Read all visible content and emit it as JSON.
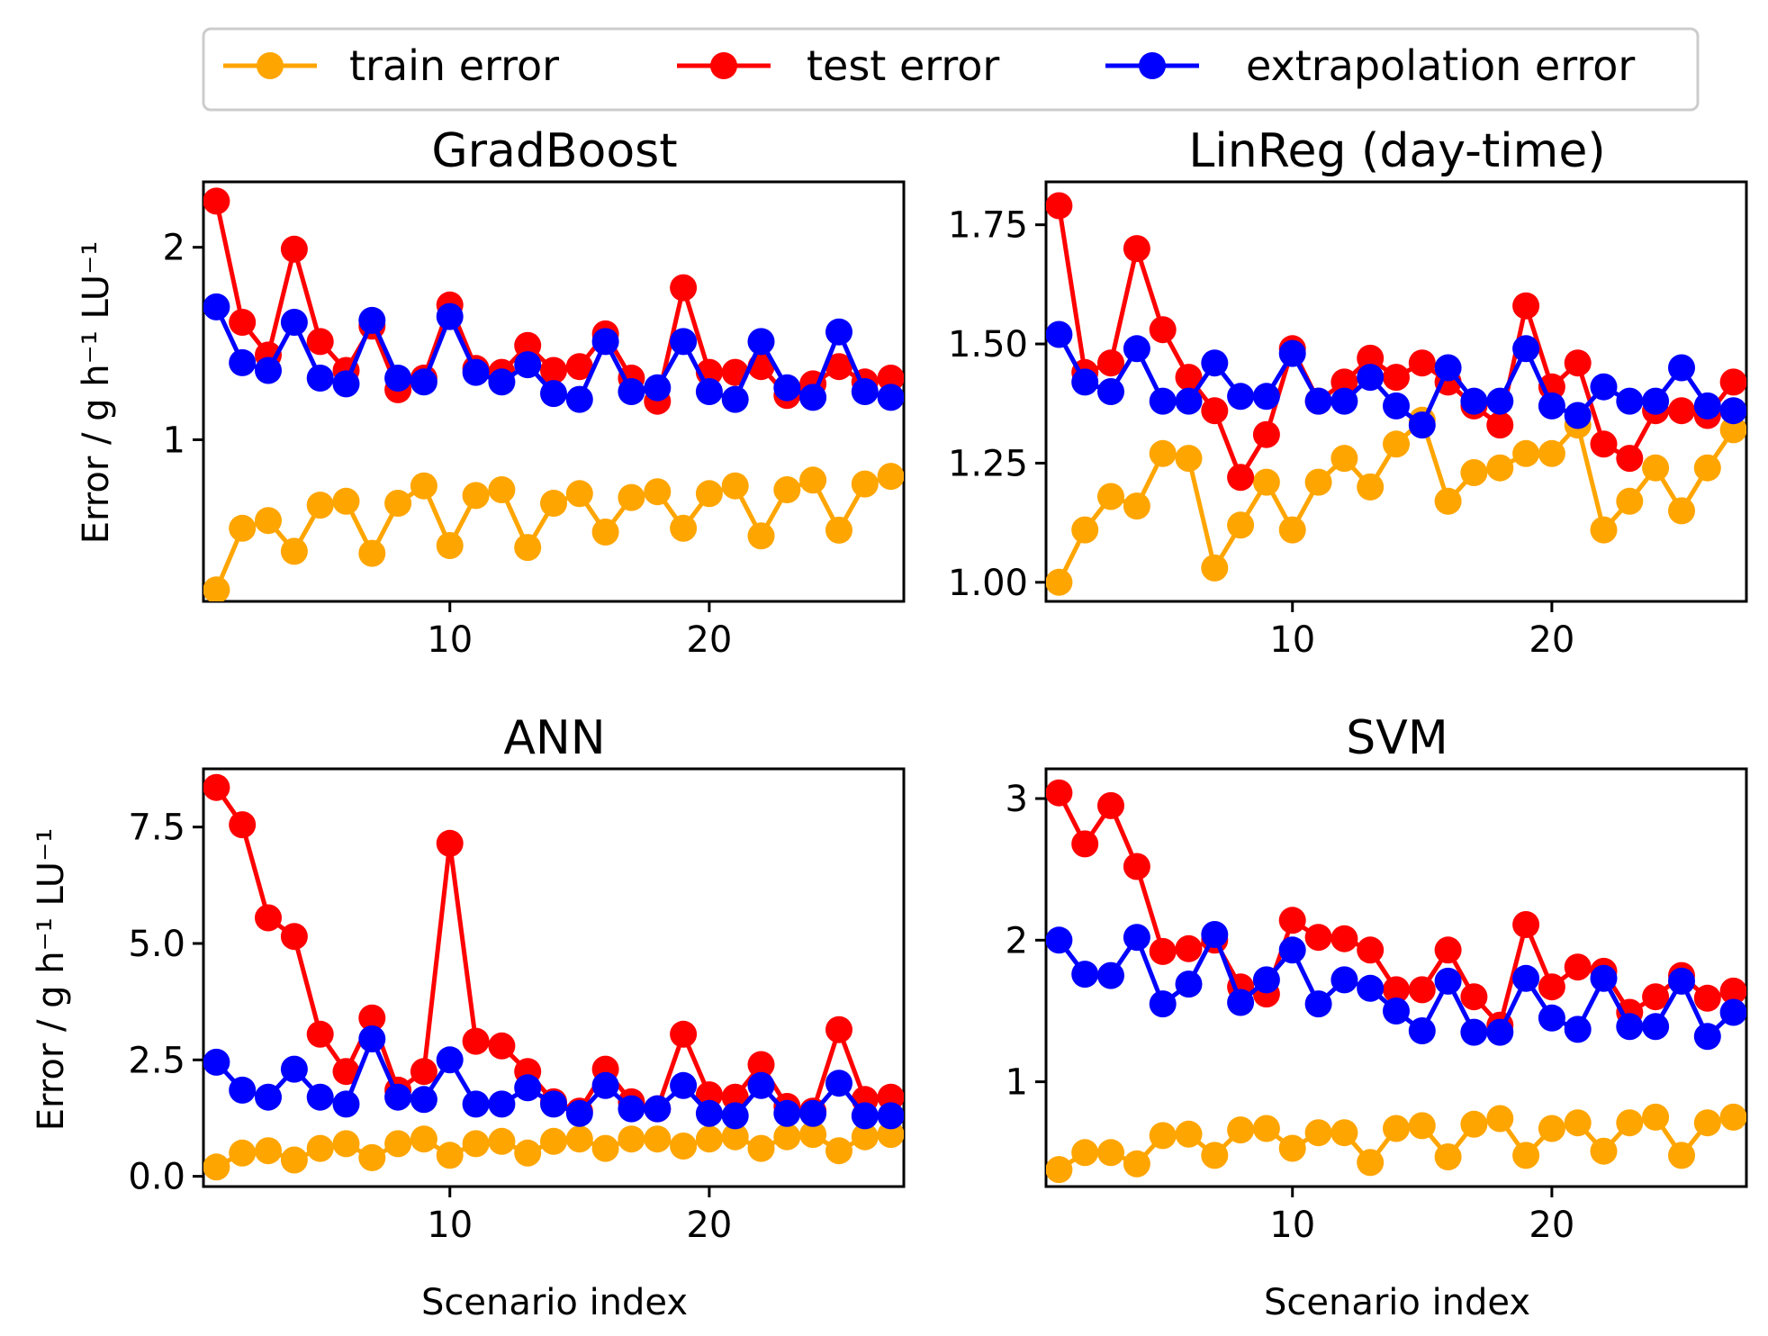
{
  "legend": {
    "items": [
      {
        "label": "train error",
        "color": "#FFA500"
      },
      {
        "label": "test error",
        "color": "#FF0000"
      },
      {
        "label": "extrapolation error",
        "color": "#0000FF"
      }
    ]
  },
  "chart_data": [
    {
      "type": "line",
      "title": "GradBoost",
      "xlabel": "",
      "ylabel": "Error  /  g h⁻¹ LU⁻¹",
      "xlim": [
        0.5,
        27.5
      ],
      "ylim": [
        0.16,
        2.34
      ],
      "xticks": [
        10,
        20
      ],
      "xtick_labels": [
        "10",
        "20"
      ],
      "yticks": [
        1,
        2
      ],
      "ytick_labels": [
        "1",
        "2"
      ],
      "x": [
        1,
        2,
        3,
        4,
        5,
        6,
        7,
        8,
        9,
        10,
        11,
        12,
        13,
        14,
        15,
        16,
        17,
        18,
        19,
        20,
        21,
        22,
        23,
        24,
        25,
        26,
        27
      ],
      "series": [
        {
          "name": "train error",
          "color": "#FFA500",
          "values": [
            0.22,
            0.54,
            0.58,
            0.42,
            0.66,
            0.68,
            0.41,
            0.67,
            0.76,
            0.45,
            0.71,
            0.74,
            0.44,
            0.67,
            0.72,
            0.52,
            0.7,
            0.73,
            0.54,
            0.72,
            0.76,
            0.5,
            0.74,
            0.79,
            0.53,
            0.77,
            0.81
          ]
        },
        {
          "name": "test error",
          "color": "#FF0000",
          "values": [
            2.24,
            1.61,
            1.44,
            1.99,
            1.51,
            1.36,
            1.59,
            1.26,
            1.32,
            1.7,
            1.37,
            1.35,
            1.49,
            1.36,
            1.38,
            1.55,
            1.32,
            1.2,
            1.79,
            1.35,
            1.35,
            1.38,
            1.23,
            1.29,
            1.38,
            1.3,
            1.32
          ]
        },
        {
          "name": "extrapolation error",
          "color": "#0000FF",
          "values": [
            1.69,
            1.4,
            1.36,
            1.61,
            1.32,
            1.29,
            1.62,
            1.32,
            1.3,
            1.64,
            1.35,
            1.3,
            1.39,
            1.24,
            1.21,
            1.51,
            1.25,
            1.27,
            1.51,
            1.25,
            1.21,
            1.51,
            1.27,
            1.22,
            1.56,
            1.25,
            1.22
          ]
        }
      ]
    },
    {
      "type": "line",
      "title": "LinReg (day-time)",
      "xlabel": "",
      "ylabel": "",
      "xlim": [
        0.5,
        27.5
      ],
      "ylim": [
        0.96,
        1.84
      ],
      "xticks": [
        10,
        20
      ],
      "xtick_labels": [
        "10",
        "20"
      ],
      "yticks": [
        1.0,
        1.25,
        1.5,
        1.75
      ],
      "ytick_labels": [
        "1.00",
        "1.25",
        "1.50",
        "1.75"
      ],
      "x": [
        1,
        2,
        3,
        4,
        5,
        6,
        7,
        8,
        9,
        10,
        11,
        12,
        13,
        14,
        15,
        16,
        17,
        18,
        19,
        20,
        21,
        22,
        23,
        24,
        25,
        26,
        27
      ],
      "series": [
        {
          "name": "train error",
          "color": "#FFA500",
          "values": [
            1.0,
            1.11,
            1.18,
            1.16,
            1.27,
            1.26,
            1.03,
            1.12,
            1.21,
            1.11,
            1.21,
            1.26,
            1.2,
            1.29,
            1.34,
            1.17,
            1.23,
            1.24,
            1.27,
            1.27,
            1.33,
            1.11,
            1.17,
            1.24,
            1.15,
            1.24,
            1.32
          ]
        },
        {
          "name": "test error",
          "color": "#FF0000",
          "values": [
            1.79,
            1.44,
            1.46,
            1.7,
            1.53,
            1.43,
            1.36,
            1.22,
            1.31,
            1.49,
            1.38,
            1.42,
            1.47,
            1.43,
            1.46,
            1.42,
            1.37,
            1.33,
            1.58,
            1.41,
            1.46,
            1.29,
            1.26,
            1.36,
            1.36,
            1.35,
            1.42
          ]
        },
        {
          "name": "extrapolation error",
          "color": "#0000FF",
          "values": [
            1.52,
            1.42,
            1.4,
            1.49,
            1.38,
            1.38,
            1.46,
            1.39,
            1.39,
            1.48,
            1.38,
            1.38,
            1.43,
            1.37,
            1.33,
            1.45,
            1.38,
            1.38,
            1.49,
            1.37,
            1.35,
            1.41,
            1.38,
            1.38,
            1.45,
            1.37,
            1.36
          ]
        }
      ]
    },
    {
      "type": "line",
      "title": "ANN",
      "xlabel": "Scenario index",
      "ylabel": "Error  /  g h⁻¹ LU⁻¹",
      "xlim": [
        0.5,
        27.5
      ],
      "ylim": [
        -0.22,
        8.75
      ],
      "xticks": [
        10,
        20
      ],
      "xtick_labels": [
        "10",
        "20"
      ],
      "yticks": [
        0.0,
        2.5,
        5.0,
        7.5
      ],
      "ytick_labels": [
        "0.0",
        "2.5",
        "5.0",
        "7.5"
      ],
      "x": [
        1,
        2,
        3,
        4,
        5,
        6,
        7,
        8,
        9,
        10,
        11,
        12,
        13,
        14,
        15,
        16,
        17,
        18,
        19,
        20,
        21,
        22,
        23,
        24,
        25,
        26,
        27
      ],
      "series": [
        {
          "name": "train error",
          "color": "#FFA500",
          "values": [
            0.2,
            0.5,
            0.55,
            0.35,
            0.6,
            0.7,
            0.4,
            0.7,
            0.8,
            0.45,
            0.7,
            0.75,
            0.5,
            0.75,
            0.8,
            0.6,
            0.8,
            0.8,
            0.65,
            0.8,
            0.85,
            0.6,
            0.85,
            0.9,
            0.55,
            0.85,
            0.9
          ]
        },
        {
          "name": "test error",
          "color": "#FF0000",
          "values": [
            8.35,
            7.55,
            5.55,
            5.15,
            3.05,
            2.25,
            3.4,
            1.85,
            2.25,
            7.15,
            2.9,
            2.8,
            2.25,
            1.6,
            1.4,
            2.3,
            1.6,
            1.45,
            3.05,
            1.75,
            1.7,
            2.4,
            1.5,
            1.4,
            3.15,
            1.65,
            1.7
          ]
        },
        {
          "name": "extrapolation error",
          "color": "#0000FF",
          "values": [
            2.45,
            1.85,
            1.7,
            2.3,
            1.7,
            1.55,
            2.95,
            1.7,
            1.65,
            2.5,
            1.55,
            1.55,
            1.9,
            1.55,
            1.35,
            1.95,
            1.45,
            1.45,
            1.95,
            1.35,
            1.3,
            1.95,
            1.35,
            1.35,
            2.0,
            1.3,
            1.3
          ]
        }
      ]
    },
    {
      "type": "line",
      "title": "SVM",
      "xlabel": "Scenario index",
      "ylabel": "",
      "xlim": [
        0.5,
        27.5
      ],
      "ylim": [
        0.26,
        3.21
      ],
      "xticks": [
        10,
        20
      ],
      "xtick_labels": [
        "10",
        "20"
      ],
      "yticks": [
        1,
        2,
        3
      ],
      "ytick_labels": [
        "1",
        "2",
        "3"
      ],
      "x": [
        1,
        2,
        3,
        4,
        5,
        6,
        7,
        8,
        9,
        10,
        11,
        12,
        13,
        14,
        15,
        16,
        17,
        18,
        19,
        20,
        21,
        22,
        23,
        24,
        25,
        26,
        27
      ],
      "series": [
        {
          "name": "train error",
          "color": "#FFA500",
          "values": [
            0.38,
            0.5,
            0.5,
            0.42,
            0.62,
            0.63,
            0.48,
            0.66,
            0.67,
            0.53,
            0.64,
            0.64,
            0.43,
            0.67,
            0.69,
            0.47,
            0.7,
            0.74,
            0.48,
            0.67,
            0.71,
            0.51,
            0.71,
            0.75,
            0.48,
            0.71,
            0.75
          ]
        },
        {
          "name": "test error",
          "color": "#FF0000",
          "values": [
            3.04,
            2.68,
            2.95,
            2.52,
            1.92,
            1.94,
            2.0,
            1.67,
            1.62,
            2.14,
            2.02,
            2.01,
            1.93,
            1.65,
            1.65,
            1.93,
            1.6,
            1.4,
            2.11,
            1.67,
            1.81,
            1.78,
            1.49,
            1.6,
            1.75,
            1.59,
            1.64
          ]
        },
        {
          "name": "extrapolation error",
          "color": "#0000FF",
          "values": [
            2.0,
            1.76,
            1.75,
            2.02,
            1.55,
            1.69,
            2.04,
            1.56,
            1.72,
            1.93,
            1.55,
            1.72,
            1.66,
            1.5,
            1.36,
            1.71,
            1.35,
            1.35,
            1.73,
            1.45,
            1.37,
            1.73,
            1.39,
            1.39,
            1.71,
            1.32,
            1.49
          ]
        }
      ]
    }
  ]
}
